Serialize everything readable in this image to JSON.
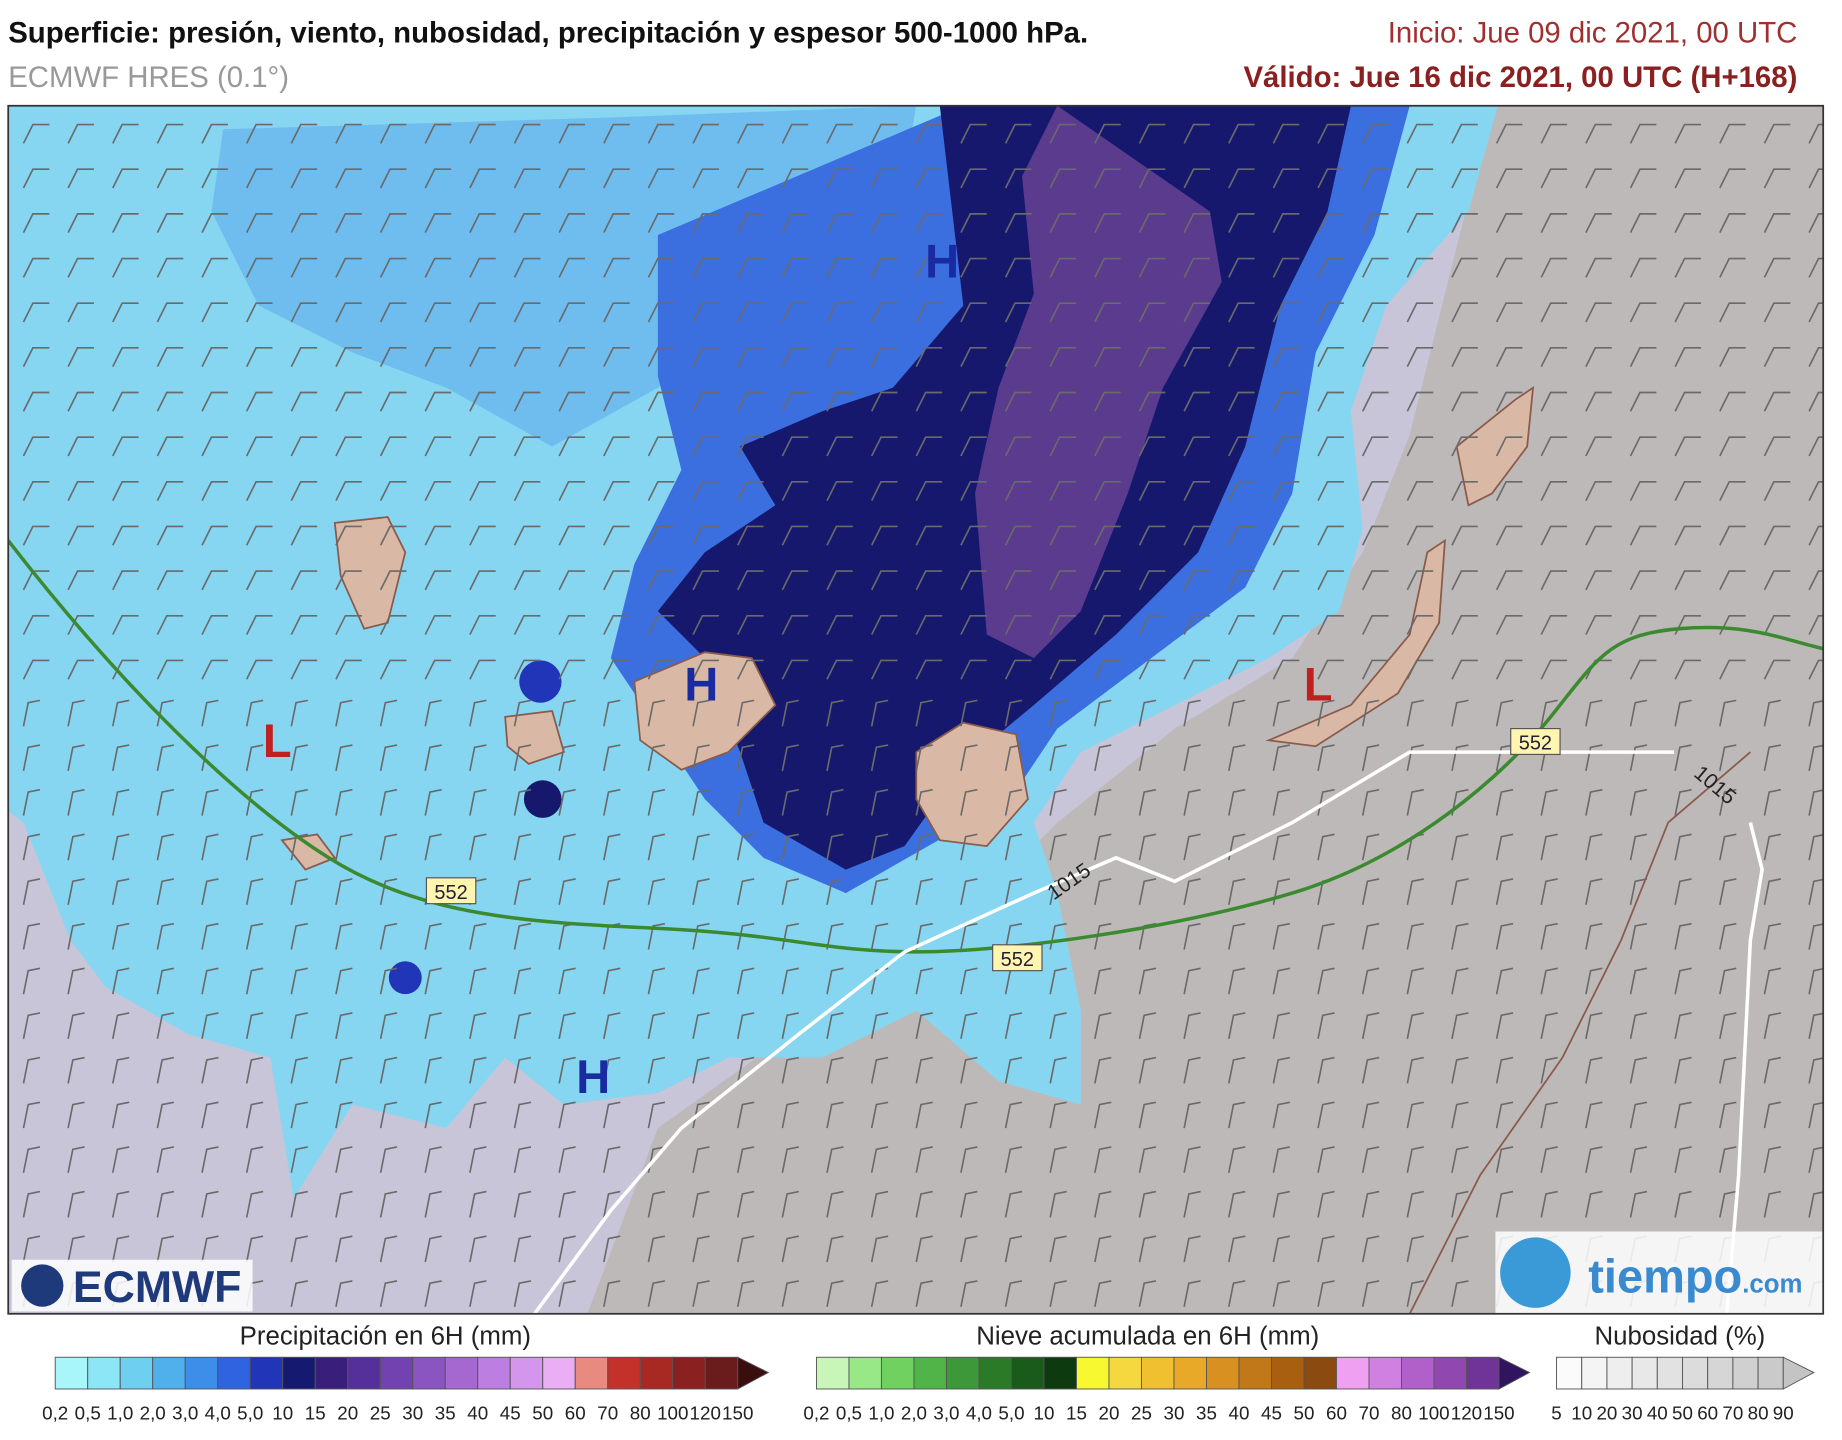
{
  "header": {
    "title": "Superficie: presión, viento, nubosidad, precipitación y espesor 500-1000 hPa.",
    "model": "ECMWF HRES (0.1°)",
    "init": "Inicio: Jue 09 dic 2021, 00 UTC",
    "valid": "Válido: Jue 16 dic 2021, 00 UTC (H+168)"
  },
  "map": {
    "pressure_centers": [
      "H",
      "H",
      "H",
      "L",
      "L"
    ],
    "thickness_labels": [
      "552",
      "552",
      "552"
    ],
    "isobar_labels": [
      "1015",
      "1015"
    ]
  },
  "logos": {
    "left": "ECMWF",
    "right_main": "tiempo",
    "right_suffix": ".com"
  },
  "legends": [
    {
      "title": "Precipitación en 6H (mm)",
      "labels": [
        "0,2",
        "0,5",
        "1,0",
        "2,0",
        "3,0",
        "4,0",
        "5,0",
        "10",
        "15",
        "20",
        "25",
        "30",
        "35",
        "40",
        "45",
        "50",
        "60",
        "70",
        "80",
        "100",
        "120",
        "150"
      ],
      "colors": [
        "#a8f5fa",
        "#8ce6f5",
        "#6ecff0",
        "#4fb0ec",
        "#3d8ee8",
        "#2f63df",
        "#2135b8",
        "#151a70",
        "#3a1e7c",
        "#55309a",
        "#7242b0",
        "#8a55c0",
        "#a468d0",
        "#bc7ee0",
        "#d496ec",
        "#e9aef3",
        "#e88a80",
        "#c4302a",
        "#a82822",
        "#8a2020",
        "#6a1c1c",
        "#3a0e0e"
      ]
    },
    {
      "title": "Nieve acumulada en 6H (mm)",
      "labels": [
        "0,2",
        "0,5",
        "1,0",
        "2,0",
        "3,0",
        "4,0",
        "5,0",
        "10",
        "15",
        "20",
        "25",
        "30",
        "35",
        "40",
        "45",
        "50",
        "60",
        "70",
        "80",
        "100",
        "120",
        "150"
      ],
      "colors": [
        "#c8f5b8",
        "#98e888",
        "#70d060",
        "#50b448",
        "#3c9838",
        "#2a7a28",
        "#1a5a1a",
        "#0e3a10",
        "#f8f830",
        "#f5d840",
        "#f0c030",
        "#e8a828",
        "#d89020",
        "#c07818",
        "#a86010",
        "#8a4a10",
        "#f0a0f0",
        "#d080e0",
        "#b060c8",
        "#9048b0",
        "#703498",
        "#301460"
      ]
    },
    {
      "title": "Nubosidad (%)",
      "labels": [
        "5",
        "10",
        "20",
        "30",
        "40",
        "50",
        "60",
        "70",
        "80",
        "90"
      ],
      "colors": [
        "#fbfbfb",
        "#f4f4f4",
        "#eeeeee",
        "#e8e8e8",
        "#e2e2e2",
        "#dcdcdc",
        "#d6d6d6",
        "#d0d0d0",
        "#cacaca",
        "#c4c4c4"
      ]
    }
  ]
}
